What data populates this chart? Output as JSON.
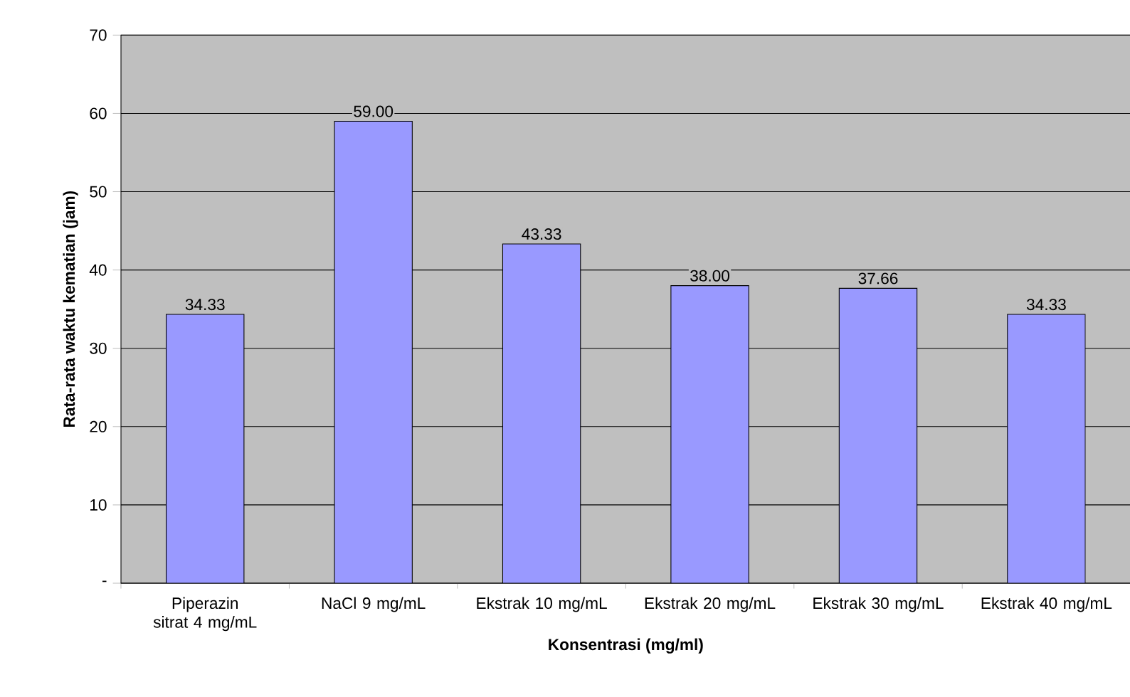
{
  "chart_data": {
    "type": "bar",
    "xlabel": "Konsentrasi (mg/ml)",
    "ylabel": "Rata-rata waktu kematian (jam)",
    "categories": [
      "Piperazin sitrat 4 mg/mL",
      "NaCl 9 mg/mL",
      "Ekstrak 10 mg/mL",
      "Ekstrak 20 mg/mL",
      "Ekstrak 30 mg/mL",
      "Ekstrak 40 mg/mL"
    ],
    "values": [
      34.33,
      59.0,
      43.33,
      38.0,
      37.66,
      34.33
    ],
    "value_labels": [
      "34.33",
      "59.00",
      "43.33",
      "38.00",
      "37.66",
      "34.33"
    ],
    "color": "#9999ff",
    "ylim": [
      0,
      70
    ],
    "yticks": [
      {
        "value": 0,
        "label": "-"
      },
      10,
      20,
      30,
      40,
      50,
      60,
      70
    ],
    "grid": "y"
  }
}
